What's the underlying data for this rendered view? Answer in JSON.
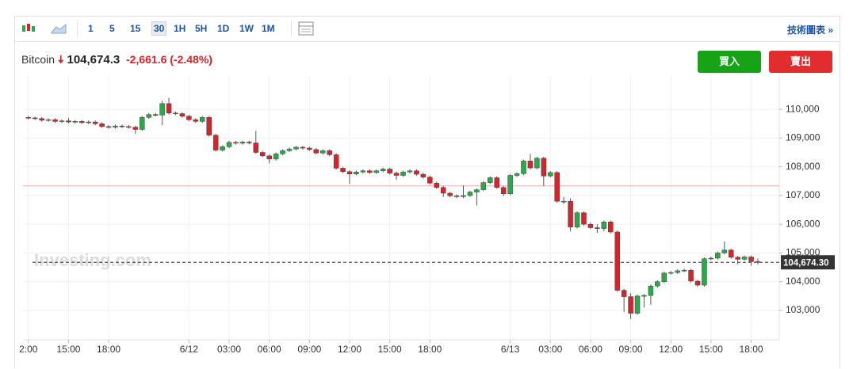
{
  "toolbar": {
    "intervals": [
      "1",
      "5",
      "15",
      "30",
      "1H",
      "5H",
      "1D",
      "1W",
      "1M"
    ],
    "active": "30",
    "link": "技術圖表 »"
  },
  "header": {
    "name": "Bitcoin",
    "price": "104,674.3",
    "change": "-2,661.6",
    "change_pct": "(-2.48%)"
  },
  "buttons": {
    "buy": "買入",
    "sell": "賣出"
  },
  "watermark": "Investing.com",
  "chart_data": {
    "type": "candlestick",
    "up_color": "#2aa84a",
    "down_color": "#d6242a",
    "grid": true,
    "xlim": [
      -0.8,
      112.2
    ],
    "xticks": [
      {
        "value": 0,
        "label": "2:00"
      },
      {
        "value": 6,
        "label": "15:00"
      },
      {
        "value": 12,
        "label": "18:00"
      },
      {
        "value": 24,
        "label": "6/12"
      },
      {
        "value": 30,
        "label": "03:00"
      },
      {
        "value": 36,
        "label": "06:00"
      },
      {
        "value": 42,
        "label": "09:00"
      },
      {
        "value": 48,
        "label": "12:00"
      },
      {
        "value": 54,
        "label": "15:00"
      },
      {
        "value": 60,
        "label": "18:00"
      },
      {
        "value": 72,
        "label": "6/13"
      },
      {
        "value": 78,
        "label": "03:00"
      },
      {
        "value": 84,
        "label": "06:00"
      },
      {
        "value": 90,
        "label": "09:00"
      },
      {
        "value": 96,
        "label": "12:00"
      },
      {
        "value": 102,
        "label": "15:00"
      },
      {
        "value": 108,
        "label": "18:00"
      }
    ],
    "ylim": [
      101980,
      111160
    ],
    "yticks": [
      {
        "value": 103000,
        "label": "103,000"
      },
      {
        "value": 104000,
        "label": "104,000"
      },
      {
        "value": 105000,
        "label": "105,000"
      },
      {
        "value": 106000,
        "label": "106,000"
      },
      {
        "value": 107000,
        "label": "107,000"
      },
      {
        "value": 108000,
        "label": "108,000"
      },
      {
        "value": 109000,
        "label": "109,000"
      },
      {
        "value": 110000,
        "label": "110,000"
      }
    ],
    "prev_close": 107335.9,
    "last_price": {
      "value": 104674.3,
      "label": "104,674.30"
    },
    "open": [
      109720,
      109700,
      109680,
      109620,
      109640,
      109580,
      109600,
      109560,
      109580,
      109540,
      109560,
      109500,
      109400,
      109380,
      109420,
      109400,
      109380,
      109300,
      109720,
      109820,
      109800,
      110200,
      109870,
      109850,
      109760,
      109640,
      109580,
      109720,
      109100,
      108580,
      108700,
      108850,
      108820,
      108860,
      108830,
      108500,
      108380,
      108270,
      108450,
      108560,
      108620,
      108680,
      108650,
      108600,
      108480,
      108560,
      108420,
      107950,
      107830,
      107750,
      107820,
      107860,
      107800,
      107860,
      107920,
      107780,
      107700,
      107820,
      107860,
      107740,
      107640,
      107430,
      107280,
      107080,
      106990,
      106960,
      107000,
      107120,
      107200,
      107450,
      107620,
      107280,
      107060,
      107700,
      107760,
      108200,
      107960,
      108300,
      107680,
      107800,
      106800,
      106800,
      105900,
      106400,
      106000,
      105880,
      105850,
      106080,
      105730,
      103700,
      103480,
      102900,
      103500,
      103520,
      103850,
      104000,
      104300,
      104320,
      104380,
      104400,
      104020,
      103880,
      104800,
      104820,
      105000,
      105100,
      104850,
      104780,
      104860,
      104700
    ],
    "high": [
      109770,
      109750,
      109730,
      109690,
      109690,
      109650,
      109700,
      109630,
      109630,
      109610,
      109610,
      109550,
      109450,
      109470,
      109470,
      109450,
      109430,
      109770,
      109870,
      109870,
      110300,
      110400,
      109920,
      109900,
      109810,
      109690,
      109770,
      109770,
      109150,
      108750,
      108900,
      108900,
      108910,
      108910,
      109250,
      108550,
      108430,
      108500,
      108610,
      108670,
      108730,
      108730,
      108700,
      108650,
      108610,
      108610,
      108470,
      108000,
      107880,
      107870,
      107910,
      107910,
      107910,
      107970,
      107970,
      107830,
      107870,
      107910,
      107910,
      107790,
      107690,
      107480,
      107330,
      107130,
      107040,
      107350,
      107170,
      107250,
      107500,
      107670,
      107670,
      107330,
      107750,
      107810,
      108250,
      108450,
      108350,
      108350,
      107850,
      107850,
      106950,
      106900,
      106450,
      106450,
      106050,
      106000,
      106130,
      106130,
      105780,
      103750,
      103600,
      103550,
      103570,
      103900,
      104050,
      104350,
      104370,
      104430,
      104450,
      104450,
      104070,
      104850,
      104870,
      105050,
      105400,
      105150,
      104900,
      104910,
      104910,
      104800
    ],
    "low": [
      109650,
      109630,
      109570,
      109570,
      109530,
      109530,
      109510,
      109510,
      109490,
      109490,
      109450,
      109350,
      109330,
      109330,
      109350,
      109330,
      109150,
      109250,
      109670,
      109750,
      109450,
      109820,
      109800,
      109710,
      109590,
      109530,
      109530,
      109050,
      108530,
      108530,
      108650,
      108770,
      108770,
      108780,
      108450,
      108330,
      108120,
      108220,
      108400,
      108510,
      108570,
      108600,
      108550,
      108430,
      108430,
      108370,
      107900,
      107780,
      107400,
      107700,
      107770,
      107750,
      107750,
      107810,
      107730,
      107550,
      107650,
      107770,
      107690,
      107590,
      107380,
      107230,
      106950,
      106940,
      106910,
      106910,
      106950,
      106650,
      107150,
      107400,
      107230,
      106980,
      107010,
      107650,
      107710,
      107910,
      107910,
      107330,
      107630,
      106750,
      106700,
      105750,
      105850,
      105950,
      105830,
      105700,
      105750,
      105680,
      103650,
      102950,
      102700,
      102850,
      103100,
      103200,
      103800,
      103950,
      104250,
      104270,
      104330,
      103970,
      103830,
      103830,
      104750,
      104770,
      104950,
      104800,
      104600,
      104730,
      104550,
      104600
    ],
    "close": [
      109700,
      109680,
      109620,
      109640,
      109580,
      109600,
      109560,
      109580,
      109540,
      109560,
      109500,
      109400,
      109380,
      109420,
      109400,
      109380,
      109300,
      109720,
      109820,
      109800,
      110200,
      109870,
      109850,
      109760,
      109640,
      109580,
      109720,
      109100,
      108580,
      108700,
      108850,
      108820,
      108860,
      108830,
      108500,
      108380,
      108270,
      108450,
      108560,
      108620,
      108680,
      108650,
      108600,
      108480,
      108560,
      108420,
      107950,
      107830,
      107750,
      107820,
      107860,
      107800,
      107860,
      107920,
      107780,
      107700,
      107820,
      107860,
      107740,
      107640,
      107430,
      107280,
      107080,
      106990,
      106960,
      107000,
      107120,
      107200,
      107450,
      107620,
      107280,
      107060,
      107700,
      107760,
      108200,
      107960,
      108300,
      107680,
      107800,
      106800,
      106800,
      105900,
      106400,
      106000,
      105880,
      105850,
      106080,
      105730,
      103700,
      103480,
      102900,
      103500,
      103520,
      103850,
      104000,
      104300,
      104320,
      104380,
      104400,
      104020,
      103880,
      104800,
      104820,
      105000,
      105100,
      104850,
      104780,
      104860,
      104700,
      104674
    ]
  }
}
